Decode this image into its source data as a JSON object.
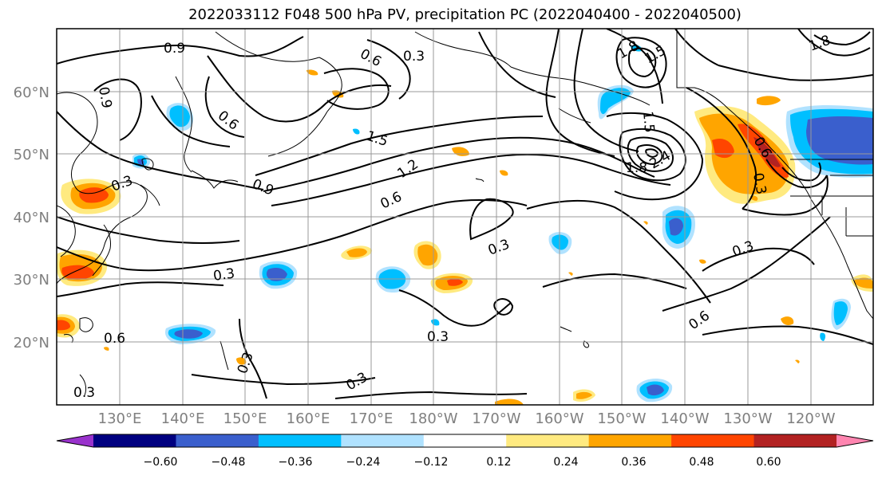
{
  "title": "2022033112 F048 500 hPa PV, precipitation PC (2022040400 - 2022040500)",
  "lat_labels": [
    "60°N",
    "50°N",
    "40°N",
    "30°N",
    "20°N"
  ],
  "lon_labels": [
    "130°E",
    "140°E",
    "150°E",
    "160°E",
    "170°E",
    "180°W",
    "170°W",
    "160°W",
    "150°W",
    "140°W",
    "130°W",
    "120°W"
  ],
  "contour_labels": [
    "0.9",
    "0.6",
    "0.3",
    "0.6",
    "0.9",
    "1.5",
    "1.2",
    "0.6",
    "0.9",
    "0.3",
    "0.3",
    "0.3",
    "0.3",
    "0.3",
    "0.3",
    "0.6",
    "0.3",
    "1.5",
    "1.8",
    "2.4",
    "1.5",
    "1.8",
    "1.8",
    "0.3",
    "0.6",
    "0.6",
    "0.3"
  ],
  "colorbar": {
    "tick_labels": [
      "−0.60",
      "−0.48",
      "−0.36",
      "−0.24",
      "−0.12",
      "0.12",
      "0.24",
      "0.36",
      "0.48",
      "0.60"
    ],
    "colors": [
      "#9932cc",
      "#000080",
      "#3a5fcd",
      "#00bfff",
      "#b0e2ff",
      "#ffffff",
      "#ffea80",
      "#ffa500",
      "#ff4500",
      "#b22222",
      "#ff85b0"
    ]
  }
}
